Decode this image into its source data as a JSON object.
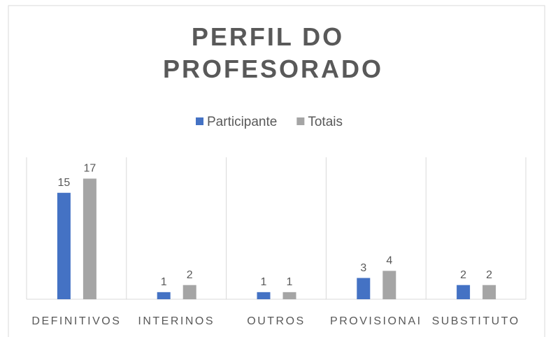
{
  "chart_data": {
    "type": "bar",
    "title": "PERFIL DO PROFESORADO",
    "categories": [
      "DEFINITIVOS",
      "INTERINOS",
      "OUTROS",
      "PROVISIONAI",
      "SUBSTITUTO"
    ],
    "series": [
      {
        "name": "Participante",
        "color": "#4472c4",
        "values": [
          15,
          1,
          1,
          3,
          2
        ]
      },
      {
        "name": "Totais",
        "color": "#a5a5a5",
        "values": [
          17,
          2,
          1,
          4,
          2
        ]
      }
    ],
    "ylim": [
      0,
      20
    ],
    "legend": "top"
  }
}
